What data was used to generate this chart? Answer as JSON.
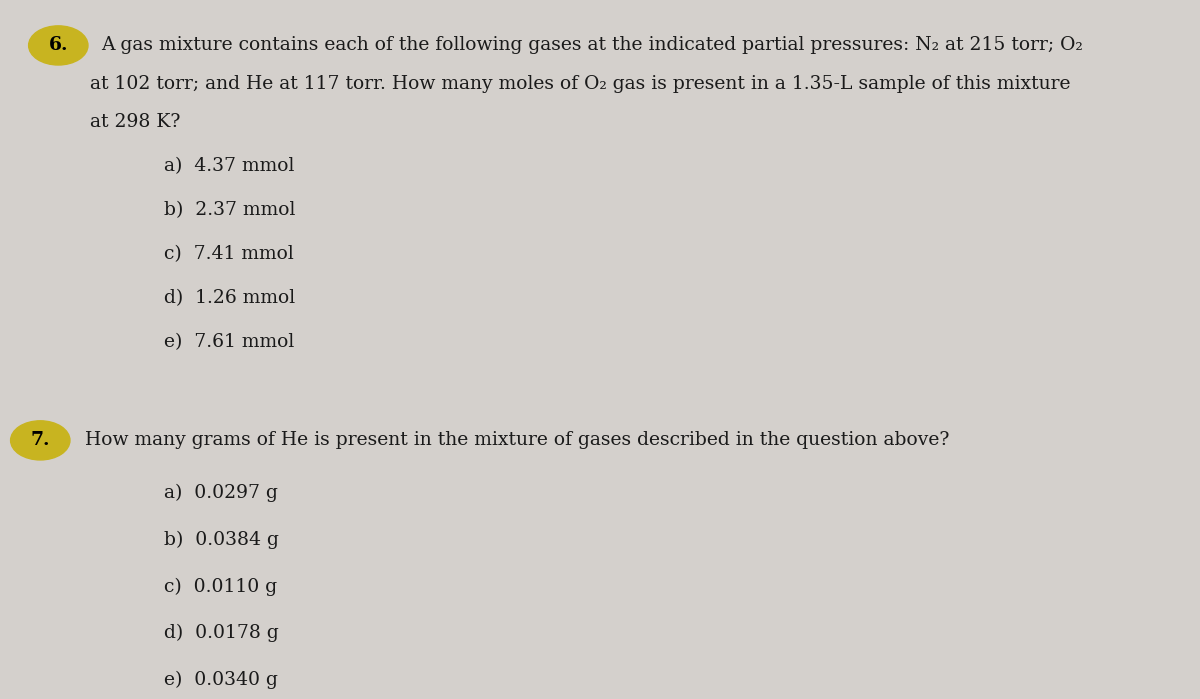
{
  "bg_color": "#d4d0cc",
  "q6_number": "6.",
  "q6_number_bg": "#c8b420",
  "q6_text_line1": "A gas mixture contains each of the following gases at the indicated partial pressures: N₂ at 215 torr; O₂",
  "q6_text_line2": "at 102 torr; and He at 117 torr. How many moles of O₂ gas is present in a 1.35-L sample of this mixture",
  "q6_text_line3": "at 298 K?",
  "q6_choices": [
    "a) 4.37 mmol",
    "b) 2.37 mmol",
    "c) 7.41 mmol",
    "d) 1.26 mmol",
    "e) 7.61 mmol"
  ],
  "q7_number": "7.",
  "q7_number_bg": "#c8b420",
  "q7_text": "How many grams of He is present in the mixture of gases described in the question above?",
  "q7_choices": [
    "a) 0.0297 g",
    "b) 0.0384 g",
    "c) 0.0110 g",
    "d) 0.0178 g",
    "e) 0.0340 g"
  ],
  "font_size_question": 13.5,
  "font_size_choices": 13.5,
  "text_color": "#1a1a1a",
  "font_family": "serif"
}
